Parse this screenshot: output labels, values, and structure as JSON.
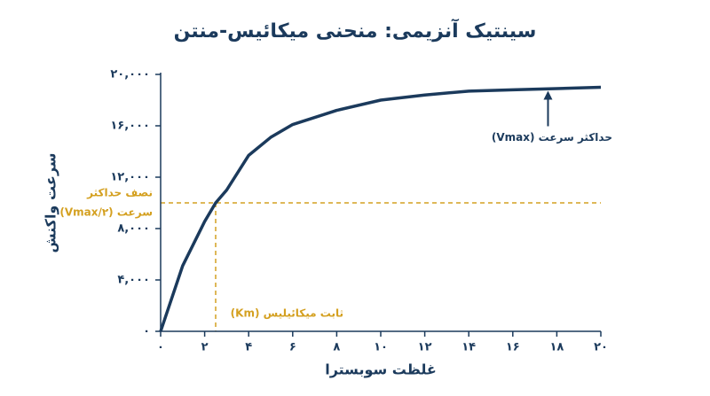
{
  "chart_data": {
    "type": "line",
    "title": "سینتیک آنزیمی: منحنی میکائیس-منتن",
    "x_label": "غلظت سوبسترا",
    "y_label": "سرعت واکنش",
    "x": [
      0,
      1,
      2,
      2.5,
      3,
      4,
      5,
      6,
      8,
      10,
      12,
      14,
      16,
      18,
      20
    ],
    "series": [
      {
        "name": "سرعت واکنش",
        "color": "#1b3a5c",
        "values": [
          0,
          5100,
          8550,
          10000,
          11000,
          13700,
          15100,
          16100,
          17200,
          18000,
          18400,
          18700,
          18800,
          18900,
          19000
        ]
      }
    ],
    "xlim": [
      0,
      20
    ],
    "ylim": [
      0,
      20000
    ],
    "xticks": [
      {
        "value": 0,
        "label": "۰"
      },
      {
        "value": 2,
        "label": "۲"
      },
      {
        "value": 4,
        "label": "۴"
      },
      {
        "value": 6,
        "label": "۶"
      },
      {
        "value": 8,
        "label": "۸"
      },
      {
        "value": 10,
        "label": "۱۰"
      },
      {
        "value": 12,
        "label": "۱۲"
      },
      {
        "value": 14,
        "label": "۱۴"
      },
      {
        "value": 16,
        "label": "۱۶"
      },
      {
        "value": 18,
        "label": "۱۸"
      },
      {
        "value": 20,
        "label": "۲۰"
      }
    ],
    "yticks": [
      {
        "value": 0,
        "label": "۰"
      },
      {
        "value": 4000,
        "label": "۴,۰۰۰"
      },
      {
        "value": 8000,
        "label": "۸,۰۰۰"
      },
      {
        "value": 12000,
        "label": "۱۲,۰۰۰"
      },
      {
        "value": 16000,
        "label": "۱۶,۰۰۰"
      },
      {
        "value": 20000,
        "label": "۲۰,۰۰۰"
      }
    ],
    "grid": false,
    "reference_color": "#d4a020",
    "half_vmax": {
      "value": 10000,
      "label": [
        "نصف حداکثر",
        "سرعت (Vmax/۲)"
      ]
    },
    "km": {
      "value": 2.5,
      "label": "ثابت میکائیلیس (Km)"
    },
    "vmax_annotation": {
      "x": 17.6,
      "y": 19000,
      "label": "حداکثر سرعت (Vmax)"
    }
  }
}
